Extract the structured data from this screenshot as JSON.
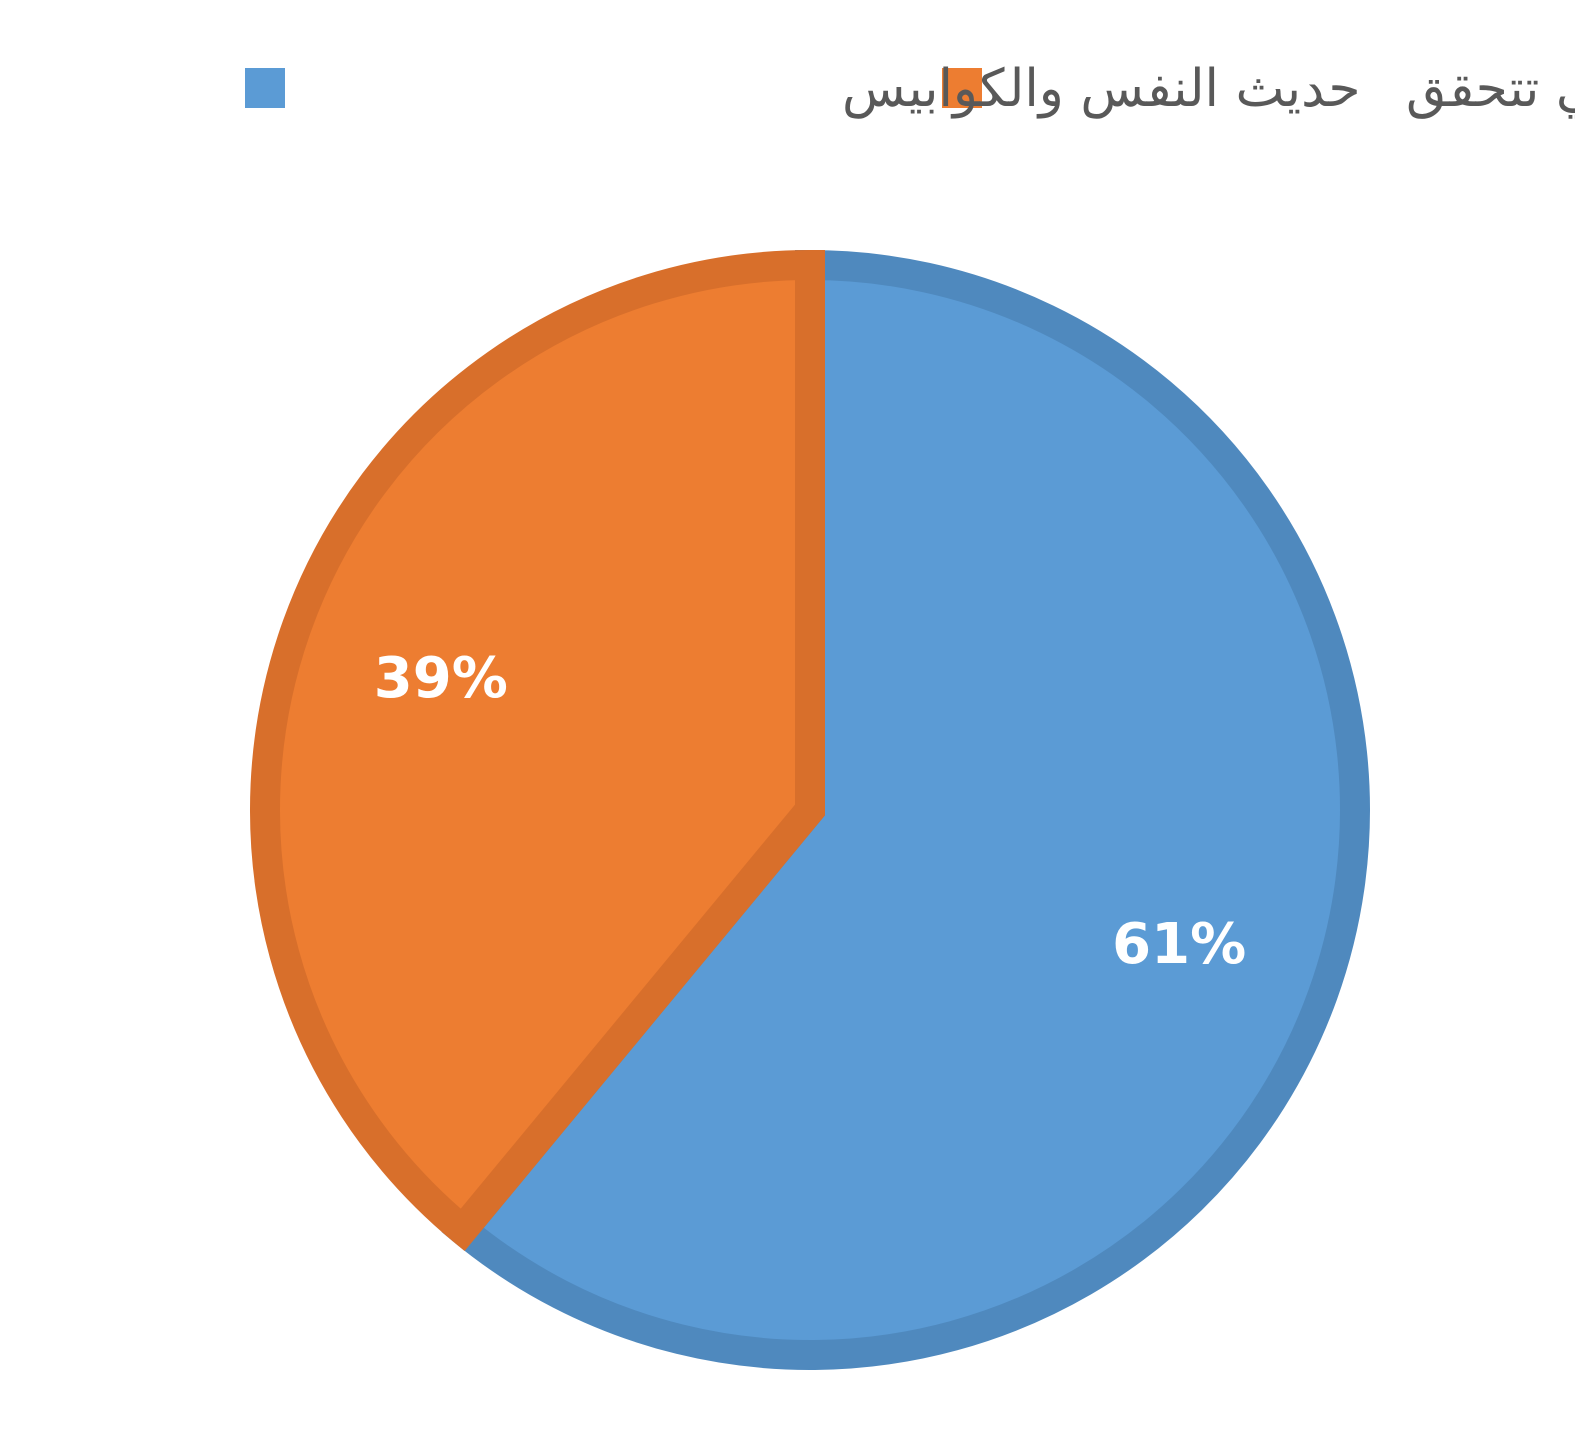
{
  "chart_data": {
    "type": "pie",
    "start_angle_deg": 0,
    "direction": "clockwise",
    "legend_position": "top",
    "slices": [
      {
        "label": "حديث النفس والكوابيس",
        "value": 61,
        "display": "61%",
        "color": "#5B9BD5",
        "border_color": "#4F89BE"
      },
      {
        "label": "الرؤى التي تتحقق",
        "value": 39,
        "display": "39%",
        "color": "#ED7D31",
        "border_color": "#D86F2B"
      }
    ]
  }
}
